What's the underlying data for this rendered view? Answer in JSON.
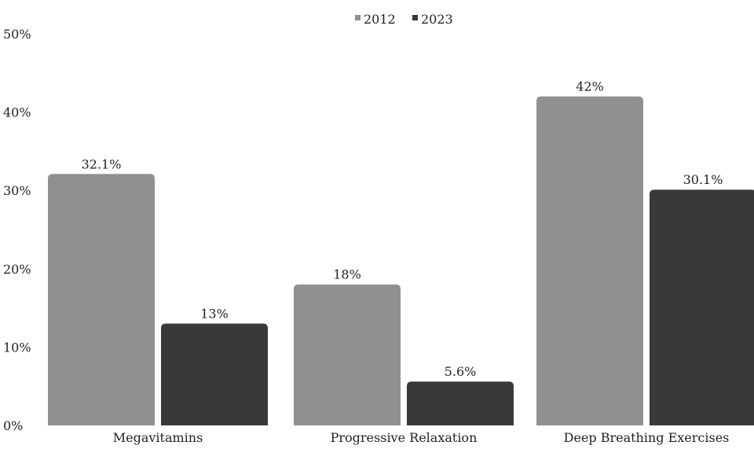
{
  "chart_data": {
    "type": "bar",
    "title": "",
    "xlabel": "",
    "ylabel": "",
    "categories": [
      "Megavitamins",
      "Progressive Relaxation",
      "Deep Breathing Exercises"
    ],
    "series": [
      {
        "name": "2012",
        "values": [
          32.1,
          18,
          42
        ],
        "labels": [
          "32.1%",
          "18%",
          "42%"
        ],
        "color": "#909090"
      },
      {
        "name": "2023",
        "values": [
          13,
          5.6,
          30.1
        ],
        "labels": [
          "13%",
          "5.6%",
          "30.1%"
        ],
        "color": "#393939"
      }
    ],
    "ylim": [
      0,
      50
    ],
    "yticks": [
      "0%",
      "10%",
      "20%",
      "30%",
      "40%",
      "50%"
    ],
    "grid": false,
    "legend": "top-center"
  }
}
